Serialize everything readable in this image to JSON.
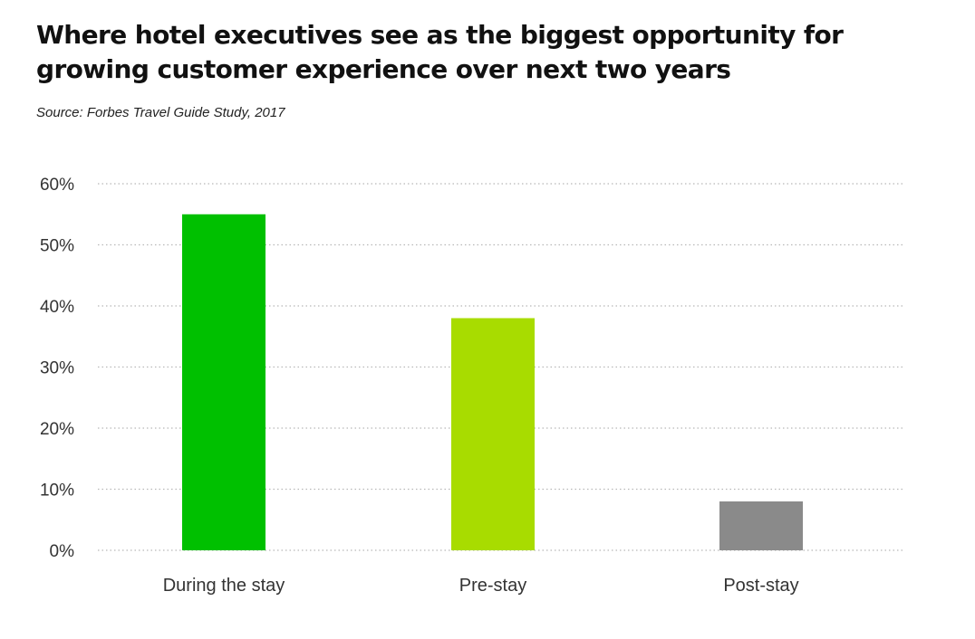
{
  "title_line1": "Where hotel executives see as the biggest opportunity for",
  "title_line2": "growing customer experience over next two years",
  "source": "Source: Forbes Travel Guide Study, 2017",
  "chart_data": {
    "type": "bar",
    "categories": [
      "During the stay",
      "Pre-stay",
      "Post-stay"
    ],
    "values": [
      55,
      38,
      8
    ],
    "colors": [
      "#00c000",
      "#a8dc00",
      "#8a8a8a"
    ],
    "ylim": [
      0,
      60
    ],
    "yticks": [
      0,
      10,
      20,
      30,
      40,
      50,
      60
    ],
    "ytick_labels": [
      "0%",
      "10%",
      "20%",
      "30%",
      "40%",
      "50%",
      "60%"
    ],
    "grid": true,
    "xlabel": "",
    "ylabel": ""
  }
}
